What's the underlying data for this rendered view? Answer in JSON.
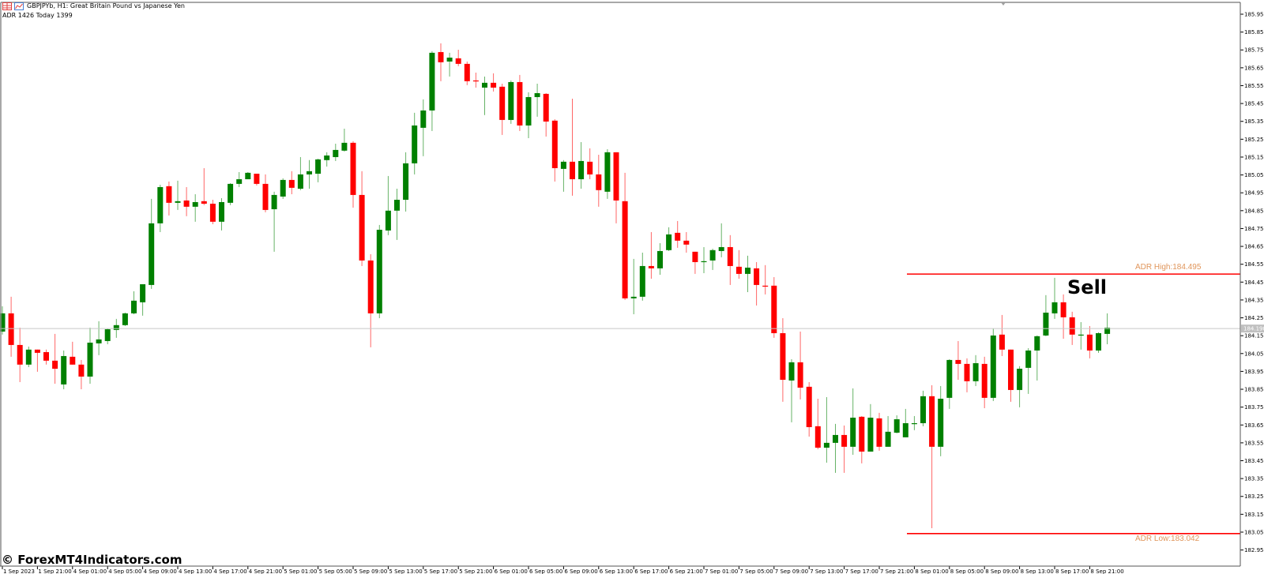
{
  "header": {
    "symbol_line": "GBPJPYb, H1:  Great Britain Pound vs Japanese Yen",
    "adr_line": "ADR 1426  Today 1399"
  },
  "watermark": "© ForexMT4Indicators.com",
  "signal_label": "Sell",
  "adr": {
    "high_label": "ADR High:184.495",
    "high_value": 184.495,
    "low_label": "ADR Low:183.042",
    "low_value": 183.042,
    "line_color": "#ff0000",
    "label_color": "#e0955a"
  },
  "current_price": {
    "value": 184.19,
    "label": "184.190"
  },
  "colors": {
    "bull": "#008000",
    "bear": "#ff0000",
    "background": "#ffffff",
    "price_line": "#c8c8c8"
  },
  "chart_data": {
    "type": "candlestick",
    "symbol": "GBPJPYb",
    "timeframe": "H1",
    "grid": false,
    "ylim": [
      182.95,
      185.95
    ],
    "y_ticks": [
      "185.950",
      "185.850",
      "185.750",
      "185.650",
      "185.550",
      "185.450",
      "185.350",
      "185.250",
      "185.150",
      "185.050",
      "184.950",
      "184.850",
      "184.750",
      "184.650",
      "184.550",
      "184.450",
      "184.350",
      "184.250",
      "184.150",
      "184.050",
      "183.950",
      "183.850",
      "183.750",
      "183.650",
      "183.550",
      "183.450",
      "183.350",
      "183.250",
      "183.150",
      "183.050",
      "182.950"
    ],
    "x_tick_labels": [
      "1 Sep 2023",
      "1 Sep 21:00",
      "4 Sep 01:00",
      "4 Sep 05:00",
      "4 Sep 09:00",
      "4 Sep 13:00",
      "4 Sep 17:00",
      "4 Sep 21:00",
      "5 Sep 01:00",
      "5 Sep 05:00",
      "5 Sep 09:00",
      "5 Sep 13:00",
      "5 Sep 17:00",
      "5 Sep 21:00",
      "6 Sep 01:00",
      "6 Sep 05:00",
      "6 Sep 09:00",
      "6 Sep 13:00",
      "6 Sep 17:00",
      "6 Sep 21:00",
      "7 Sep 01:00",
      "7 Sep 05:00",
      "7 Sep 09:00",
      "7 Sep 13:00",
      "7 Sep 17:00",
      "7 Sep 21:00",
      "8 Sep 01:00",
      "8 Sep 05:00",
      "8 Sep 09:00",
      "8 Sep 13:00",
      "8 Sep 17:00",
      "8 Sep 21:00"
    ],
    "ohlc_fields": [
      "open",
      "high",
      "low",
      "close"
    ],
    "ohlc": [
      [
        184.173,
        184.315,
        184.156,
        184.275
      ],
      [
        184.275,
        184.368,
        184.032,
        184.098
      ],
      [
        184.098,
        184.195,
        183.89,
        183.988
      ],
      [
        183.988,
        184.089,
        183.974,
        184.072
      ],
      [
        184.072,
        184.072,
        183.948,
        184.054
      ],
      [
        184.058,
        184.072,
        183.988,
        184.01
      ],
      [
        184.01,
        184.16,
        183.881,
        183.965
      ],
      [
        183.877,
        184.067,
        183.85,
        184.036
      ],
      [
        184.032,
        184.116,
        183.988,
        183.988
      ],
      [
        183.988,
        184.014,
        183.85,
        183.921
      ],
      [
        183.921,
        184.195,
        183.881,
        184.111
      ],
      [
        184.107,
        184.231,
        184.041,
        184.129
      ],
      [
        184.12,
        184.191,
        184.102,
        184.186
      ],
      [
        184.182,
        184.244,
        184.138,
        184.209
      ],
      [
        184.209,
        184.279,
        184.204,
        184.275
      ],
      [
        184.275,
        184.399,
        184.27,
        184.346
      ],
      [
        184.337,
        184.438,
        184.262,
        184.438
      ],
      [
        184.434,
        184.916,
        184.412,
        184.779
      ],
      [
        184.779,
        184.995,
        184.73,
        184.982
      ],
      [
        184.987,
        185.013,
        184.823,
        184.894
      ],
      [
        184.894,
        185.018,
        184.854,
        184.903
      ],
      [
        184.907,
        184.982,
        184.819,
        184.872
      ],
      [
        184.872,
        184.942,
        184.788,
        184.898
      ],
      [
        184.903,
        185.088,
        184.881,
        184.889
      ],
      [
        184.889,
        184.911,
        184.774,
        184.788
      ],
      [
        184.788,
        184.92,
        184.739,
        184.898
      ],
      [
        184.894,
        185.004,
        184.881,
        185.0
      ],
      [
        185.0,
        185.066,
        184.982,
        185.026
      ],
      [
        185.026,
        185.066,
        185.026,
        185.062
      ],
      [
        185.057,
        185.057,
        184.991,
        185.0
      ],
      [
        185.0,
        185.053,
        184.841,
        184.854
      ],
      [
        184.858,
        184.956,
        184.62,
        184.938
      ],
      [
        184.929,
        185.031,
        184.916,
        185.022
      ],
      [
        185.022,
        185.071,
        184.942,
        184.978
      ],
      [
        184.973,
        185.15,
        184.965,
        185.053
      ],
      [
        185.053,
        185.133,
        184.973,
        185.071
      ],
      [
        185.057,
        185.141,
        185.009,
        185.137
      ],
      [
        185.133,
        185.177,
        185.097,
        185.159
      ],
      [
        185.15,
        185.225,
        185.128,
        185.19
      ],
      [
        185.186,
        185.309,
        185.181,
        185.23
      ],
      [
        185.23,
        185.239,
        184.867,
        184.938
      ],
      [
        184.938,
        185.071,
        184.54,
        184.571
      ],
      [
        184.571,
        184.606,
        184.085,
        184.275
      ],
      [
        184.275,
        184.77,
        184.248,
        184.743
      ],
      [
        184.739,
        185.044,
        184.713,
        184.85
      ],
      [
        184.85,
        184.973,
        184.686,
        184.911
      ],
      [
        184.911,
        185.177,
        184.845,
        185.115
      ],
      [
        185.115,
        185.398,
        185.053,
        185.327
      ],
      [
        185.314,
        185.473,
        185.155,
        185.411
      ],
      [
        185.411,
        185.743,
        185.296,
        185.734
      ],
      [
        185.738,
        185.787,
        185.575,
        185.681
      ],
      [
        185.685,
        185.734,
        185.601,
        185.707
      ],
      [
        185.703,
        185.751,
        185.659,
        185.672
      ],
      [
        185.672,
        185.685,
        185.553,
        185.575
      ],
      [
        185.579,
        185.623,
        185.539,
        185.575
      ],
      [
        185.539,
        185.601,
        185.385,
        185.566
      ],
      [
        185.566,
        185.619,
        185.517,
        185.539
      ],
      [
        185.544,
        185.561,
        185.274,
        185.358
      ],
      [
        185.358,
        185.579,
        185.336,
        185.57
      ],
      [
        185.57,
        185.61,
        185.296,
        185.327
      ],
      [
        185.327,
        185.513,
        185.256,
        185.486
      ],
      [
        185.486,
        185.561,
        185.376,
        185.508
      ],
      [
        185.504,
        185.508,
        185.265,
        185.349
      ],
      [
        185.354,
        185.362,
        185.013,
        185.088
      ],
      [
        185.084,
        185.133,
        184.956,
        185.124
      ],
      [
        185.124,
        185.477,
        184.934,
        185.026
      ],
      [
        185.026,
        185.234,
        184.973,
        185.128
      ],
      [
        185.124,
        185.199,
        185.026,
        185.053
      ],
      [
        185.053,
        185.163,
        184.872,
        184.965
      ],
      [
        184.956,
        185.194,
        184.916,
        185.177
      ],
      [
        185.177,
        185.177,
        184.779,
        184.907
      ],
      [
        184.903,
        185.062,
        184.35,
        184.359
      ],
      [
        184.359,
        184.58,
        184.27,
        184.368
      ],
      [
        184.368,
        184.615,
        184.346,
        184.54
      ],
      [
        184.54,
        184.73,
        184.469,
        184.527
      ],
      [
        184.527,
        184.668,
        184.491,
        184.624
      ],
      [
        184.629,
        184.757,
        184.624,
        184.717
      ],
      [
        184.726,
        184.792,
        184.642,
        184.682
      ],
      [
        184.682,
        184.73,
        184.615,
        184.66
      ],
      [
        184.62,
        184.62,
        184.496,
        184.562
      ],
      [
        184.562,
        184.646,
        184.5,
        184.567
      ],
      [
        184.571,
        184.637,
        184.518,
        184.629
      ],
      [
        184.624,
        184.779,
        184.589,
        184.646
      ],
      [
        184.646,
        184.713,
        184.434,
        184.54
      ],
      [
        184.536,
        184.629,
        184.469,
        184.496
      ],
      [
        184.496,
        184.598,
        184.394,
        184.531
      ],
      [
        184.527,
        184.562,
        184.319,
        184.434
      ],
      [
        184.43,
        184.545,
        184.381,
        184.425
      ],
      [
        184.43,
        184.478,
        184.138,
        184.164
      ],
      [
        184.164,
        184.248,
        183.78,
        183.903
      ],
      [
        183.899,
        184.018,
        183.665,
        184.001
      ],
      [
        184.001,
        184.173,
        183.793,
        183.859
      ],
      [
        183.864,
        183.89,
        183.585,
        183.638
      ],
      [
        183.643,
        183.797,
        183.514,
        183.523
      ],
      [
        183.523,
        183.806,
        183.439,
        183.55
      ],
      [
        183.55,
        183.656,
        183.382,
        183.594
      ],
      [
        183.594,
        183.647,
        183.382,
        183.528
      ],
      [
        183.528,
        183.855,
        183.483,
        183.691
      ],
      [
        183.696,
        183.7,
        183.435,
        183.501
      ],
      [
        183.501,
        183.767,
        183.501,
        183.691
      ],
      [
        183.687,
        183.718,
        183.506,
        183.528
      ],
      [
        183.528,
        183.7,
        183.528,
        183.612
      ],
      [
        183.607,
        183.704,
        183.603,
        183.682
      ],
      [
        183.581,
        183.74,
        183.581,
        183.66
      ],
      [
        183.656,
        183.7,
        183.621,
        183.66
      ],
      [
        183.66,
        183.842,
        183.643,
        183.811
      ],
      [
        183.811,
        183.873,
        183.072,
        183.528
      ],
      [
        183.528,
        183.868,
        183.475,
        183.797
      ],
      [
        183.802,
        184.018,
        183.74,
        184.014
      ],
      [
        184.014,
        184.12,
        183.903,
        183.992
      ],
      [
        183.992,
        184.023,
        183.833,
        183.895
      ],
      [
        183.895,
        184.041,
        183.868,
        183.996
      ],
      [
        183.992,
        184.032,
        183.744,
        183.802
      ],
      [
        183.802,
        184.191,
        183.784,
        184.151
      ],
      [
        184.156,
        184.266,
        184.036,
        184.072
      ],
      [
        184.072,
        184.072,
        183.78,
        183.846
      ],
      [
        183.846,
        183.979,
        183.749,
        183.965
      ],
      [
        183.97,
        184.08,
        183.824,
        184.067
      ],
      [
        184.067,
        184.151,
        183.899,
        184.147
      ],
      [
        184.151,
        184.377,
        184.147,
        184.279
      ],
      [
        184.275,
        184.474,
        184.244,
        184.337
      ],
      [
        184.337,
        184.381,
        184.133,
        184.253
      ],
      [
        184.253,
        184.284,
        184.098,
        184.156
      ],
      [
        184.151,
        184.226,
        184.072,
        184.156
      ],
      [
        184.156,
        184.204,
        184.023,
        184.067
      ],
      [
        184.067,
        184.169,
        184.054,
        184.164
      ],
      [
        184.16,
        184.275,
        184.102,
        184.195
      ]
    ]
  }
}
